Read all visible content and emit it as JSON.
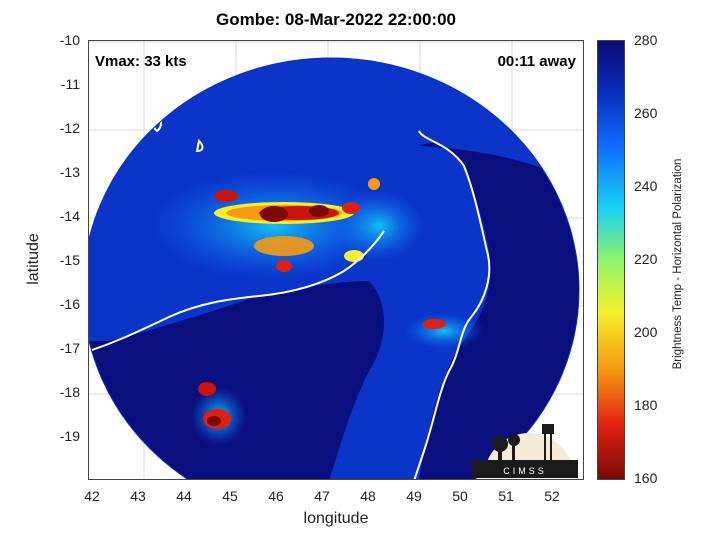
{
  "title": "Gombe: 08-Mar-2022 22:00:00",
  "annotations": {
    "vmax": "Vmax: 33 kts",
    "time_away": "00:11 away"
  },
  "xlabel": "longitude",
  "ylabel": "latitude",
  "x_ticks": [
    "42",
    "43",
    "44",
    "45",
    "46",
    "47",
    "48",
    "49",
    "50",
    "51",
    "52"
  ],
  "y_ticks": [
    "-10",
    "-11",
    "-12",
    "-13",
    "-14",
    "-15",
    "-16",
    "-17",
    "-18",
    "-19"
  ],
  "colorbar": {
    "label": "Brightness Temp - Horizontal Polarization",
    "ticks": [
      "280",
      "260",
      "240",
      "220",
      "200",
      "180",
      "160"
    ],
    "range": [
      160,
      280
    ],
    "colors": [
      "#0a0a78",
      "#0a2fbf",
      "#0f6bff",
      "#15d0f5",
      "#8ef56a",
      "#f5f02a",
      "#f59a12",
      "#e01f10",
      "#7a0a05"
    ]
  },
  "logo_text": "CIMSS",
  "map": {
    "extent": {
      "lon": [
        41.9,
        52.3
      ],
      "lat": [
        -19.95,
        -9.95
      ]
    },
    "swath_center": {
      "lon": 46.6,
      "lat": -15.0
    },
    "colors": {
      "background": "#0a2fbf",
      "land": "#0a0f7a",
      "coast": "#ffffff",
      "core_hot": "#7a0a05"
    }
  }
}
